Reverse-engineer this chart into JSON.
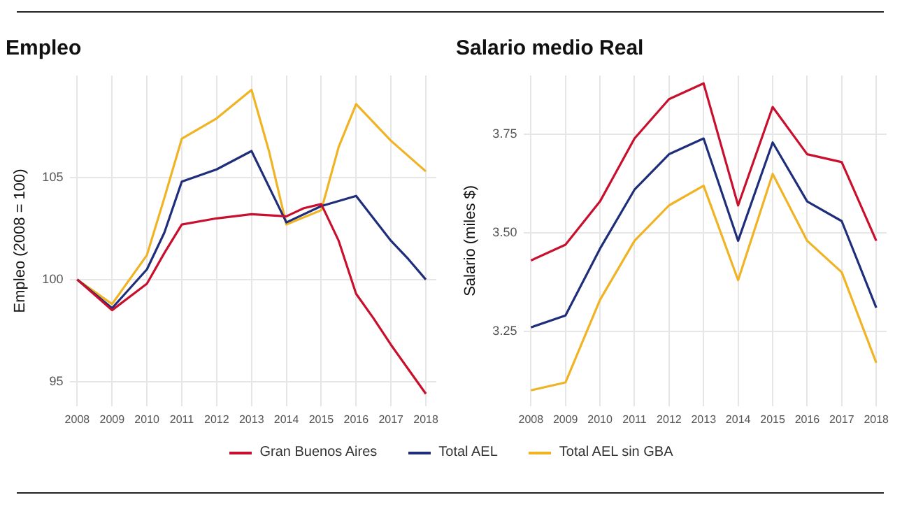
{
  "chart_data": [
    {
      "type": "line",
      "title": "Empleo",
      "ylabel": "Empleo (2008 = 100)",
      "grid": true,
      "legend": "bottom",
      "xlim": [
        2007.8,
        2018.3
      ],
      "xticks": [
        2008,
        2009,
        2010,
        2011,
        2012,
        2013,
        2014,
        2015,
        2016,
        2017,
        2018
      ],
      "ylim": [
        93.8,
        110
      ],
      "yticks": [
        95,
        100,
        105
      ],
      "series": [
        {
          "name": "Gran Buenos Aires",
          "color": "#c8102e",
          "x": [
            2008,
            2009,
            2010,
            2010.5,
            2011,
            2012,
            2013,
            2014,
            2014.5,
            2015,
            2015.5,
            2016,
            2016.5,
            2017,
            2017.5,
            2018
          ],
          "values": [
            100,
            98.5,
            99.8,
            101.3,
            102.7,
            103.0,
            103.2,
            103.1,
            103.5,
            103.7,
            101.9,
            99.3,
            98.1,
            96.8,
            95.6,
            94.4
          ]
        },
        {
          "name": "Total AEL",
          "color": "#1f2e7a",
          "x": [
            2008,
            2009,
            2010,
            2010.5,
            2011,
            2012,
            2013,
            2014,
            2015,
            2016,
            2017,
            2017.5,
            2018
          ],
          "values": [
            100,
            98.6,
            100.5,
            102.3,
            104.8,
            105.4,
            106.3,
            102.8,
            103.6,
            104.1,
            101.9,
            101.0,
            100.0
          ]
        },
        {
          "name": "Total AEL sin GBA",
          "color": "#f0b323",
          "x": [
            2008,
            2009,
            2010,
            2010.5,
            2011,
            2012,
            2013,
            2013.5,
            2014,
            2015,
            2015.5,
            2016,
            2017,
            2018
          ],
          "values": [
            100,
            98.8,
            101.2,
            104.0,
            106.9,
            107.9,
            109.3,
            106.3,
            102.7,
            103.4,
            106.5,
            108.6,
            106.8,
            105.3
          ]
        }
      ]
    },
    {
      "type": "line",
      "title": "Salario medio Real",
      "ylabel": "Salario (miles $)",
      "grid": true,
      "xlim": [
        2007.8,
        2018.3
      ],
      "xticks": [
        2008,
        2009,
        2010,
        2011,
        2012,
        2013,
        2014,
        2015,
        2016,
        2017,
        2018
      ],
      "ylim": [
        3.06,
        3.9
      ],
      "yticks": [
        {
          "value": 3.25,
          "label": "3.25"
        },
        {
          "value": 3.5,
          "label": "3.50"
        },
        {
          "value": 3.75,
          "label": "3.75"
        }
      ],
      "series": [
        {
          "color": "#c8102e",
          "x": [
            2008,
            2009,
            2010,
            2011,
            2012,
            2013,
            2014,
            2015,
            2016,
            2017,
            2018
          ],
          "values": [
            3.43,
            3.47,
            3.58,
            3.74,
            3.84,
            3.88,
            3.57,
            3.82,
            3.7,
            3.68,
            3.48
          ]
        },
        {
          "color": "#1f2e7a",
          "x": [
            2008,
            2009,
            2010,
            2011,
            2012,
            2013,
            2014,
            2015,
            2016,
            2017,
            2018
          ],
          "values": [
            3.26,
            3.29,
            3.46,
            3.61,
            3.7,
            3.74,
            3.48,
            3.73,
            3.58,
            3.53,
            3.31
          ]
        },
        {
          "color": "#f0b323",
          "x": [
            2008,
            2009,
            2010,
            2011,
            2012,
            2013,
            2014,
            2015,
            2016,
            2017,
            2018
          ],
          "values": [
            3.1,
            3.12,
            3.33,
            3.48,
            3.57,
            3.62,
            3.38,
            3.65,
            3.48,
            3.4,
            3.17
          ]
        }
      ]
    }
  ]
}
